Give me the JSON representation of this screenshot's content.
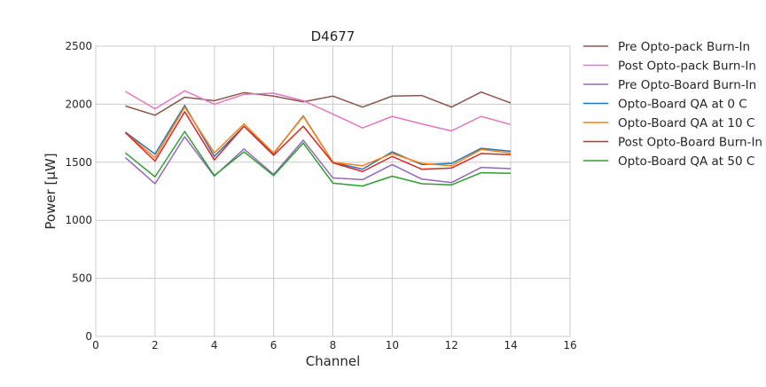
{
  "chart_data": {
    "type": "line",
    "title": "D4677",
    "xlabel": "Channel",
    "ylabel": "Power [μW]",
    "xlim": [
      0,
      16
    ],
    "ylim": [
      0,
      2500
    ],
    "xticks": [
      0,
      2,
      4,
      6,
      8,
      10,
      12,
      14,
      16
    ],
    "yticks": [
      0,
      500,
      1000,
      1500,
      2000,
      2500
    ],
    "grid": true,
    "legend_position": "outside-right",
    "x": [
      1,
      2,
      3,
      4,
      5,
      6,
      7,
      8,
      9,
      10,
      11,
      12,
      13,
      14
    ],
    "series": [
      {
        "name": "Pre Opto-pack Burn-In",
        "color": "#8c564b",
        "values": [
          1985,
          1905,
          2060,
          2030,
          2100,
          2070,
          2020,
          2070,
          1975,
          2070,
          2075,
          1975,
          2105,
          2010
        ]
      },
      {
        "name": "Post Opto-pack Burn-In",
        "color": "#e377c2",
        "values": [
          2110,
          1960,
          2115,
          2000,
          2085,
          2095,
          2030,
          1915,
          1795,
          1895,
          1830,
          1770,
          1895,
          1825
        ]
      },
      {
        "name": "Pre Opto-Board Burn-In",
        "color": "#9467bd",
        "values": [
          1540,
          1315,
          1720,
          1380,
          1615,
          1395,
          1690,
          1365,
          1350,
          1480,
          1355,
          1325,
          1455,
          1445
        ]
      },
      {
        "name": "Opto-Board QA at 0 C",
        "color": "#1f77b4",
        "values": [
          1760,
          1570,
          1990,
          1550,
          1810,
          1575,
          1900,
          1500,
          1440,
          1590,
          1480,
          1490,
          1620,
          1595
        ]
      },
      {
        "name": "Opto-Board QA at 10 C",
        "color": "#ff7f0e",
        "values": [
          1755,
          1540,
          1975,
          1580,
          1830,
          1580,
          1895,
          1500,
          1470,
          1575,
          1490,
          1470,
          1610,
          1580
        ]
      },
      {
        "name": "Post Opto-Board Burn-In",
        "color": "#d62728",
        "values": [
          1755,
          1510,
          1935,
          1520,
          1810,
          1560,
          1810,
          1495,
          1420,
          1550,
          1440,
          1450,
          1575,
          1565
        ]
      },
      {
        "name": "Opto-Board QA at 50 C",
        "color": "#2ca02c",
        "values": [
          1580,
          1375,
          1765,
          1385,
          1590,
          1385,
          1665,
          1320,
          1295,
          1380,
          1315,
          1305,
          1410,
          1405
        ]
      }
    ],
    "legend_order": [
      "Pre Opto-pack Burn-In",
      "Post Opto-pack Burn-In",
      "Pre Opto-Board Burn-In",
      "Opto-Board QA at 0 C",
      "Opto-Board QA at 10 C",
      "Post Opto-Board Burn-In",
      "Opto-Board QA at 50 C"
    ]
  }
}
